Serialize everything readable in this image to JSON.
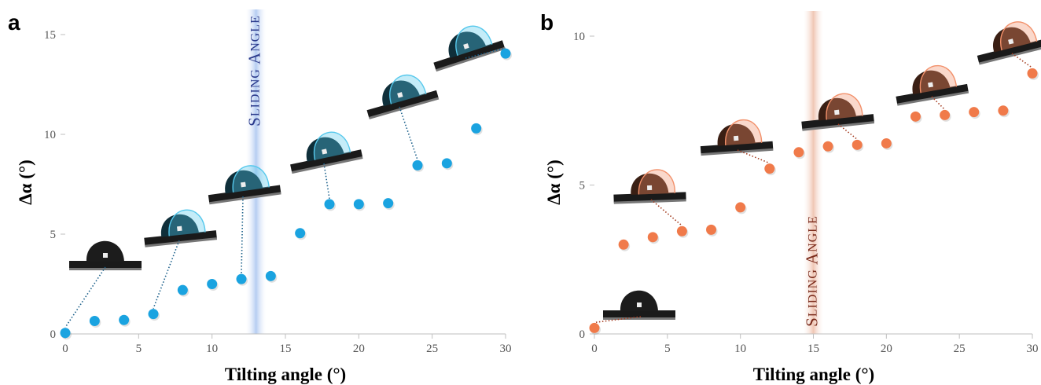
{
  "chart_data": [
    {
      "panel": "a",
      "type": "scatter",
      "xlabel": "Tilting angle (°)",
      "ylabel": "Δα (°)",
      "xlim": [
        0,
        30
      ],
      "ylim": [
        0,
        15
      ],
      "xticks": [
        "0",
        "5",
        "10",
        "15",
        "20",
        "25",
        "30"
      ],
      "yticks": [
        "0",
        "5",
        "10",
        "15"
      ],
      "band_label": "Sliding Angle",
      "band_range": [
        12.3,
        13.7
      ],
      "marker_color": "#1aa3e0",
      "band_color": "#b6cdf2",
      "band_text_color": "#2b3a8c",
      "droplet_color": "#56c8ec",
      "grid": false,
      "x": [
        0,
        2,
        4,
        6,
        8,
        10,
        12,
        14,
        16,
        18,
        20,
        22,
        24,
        26,
        28,
        30
      ],
      "y": [
        0.05,
        0.65,
        0.7,
        1.0,
        2.2,
        2.5,
        2.75,
        2.9,
        5.05,
        6.5,
        6.5,
        6.55,
        8.45,
        8.55,
        10.3,
        14.05
      ],
      "droplet_tilts": [
        0,
        6,
        12,
        18,
        24,
        30
      ]
    },
    {
      "panel": "b",
      "type": "scatter",
      "xlabel": "Tilting angle (°)",
      "ylabel": "Δα (°)",
      "xlim": [
        0,
        30
      ],
      "ylim": [
        0,
        10
      ],
      "xticks": [
        "0",
        "5",
        "10",
        "15",
        "20",
        "25",
        "30"
      ],
      "yticks": [
        "0",
        "5",
        "10"
      ],
      "band_label": "Sliding Angle",
      "band_range": [
        14.3,
        15.7
      ],
      "marker_color": "#f07a4a",
      "band_color": "#f0c6b4",
      "band_text_color": "#7a2a1a",
      "droplet_color": "#f2906a",
      "grid": false,
      "x": [
        0,
        2,
        4,
        6,
        8,
        10,
        12,
        14,
        16,
        18,
        20,
        22,
        24,
        26,
        28,
        30
      ],
      "y": [
        0.2,
        3.0,
        3.25,
        3.45,
        3.5,
        4.25,
        5.55,
        6.1,
        6.3,
        6.35,
        6.4,
        7.3,
        7.35,
        7.45,
        7.5,
        8.75
      ],
      "droplet_tilts": [
        0,
        6,
        12,
        18,
        24,
        30
      ]
    }
  ]
}
